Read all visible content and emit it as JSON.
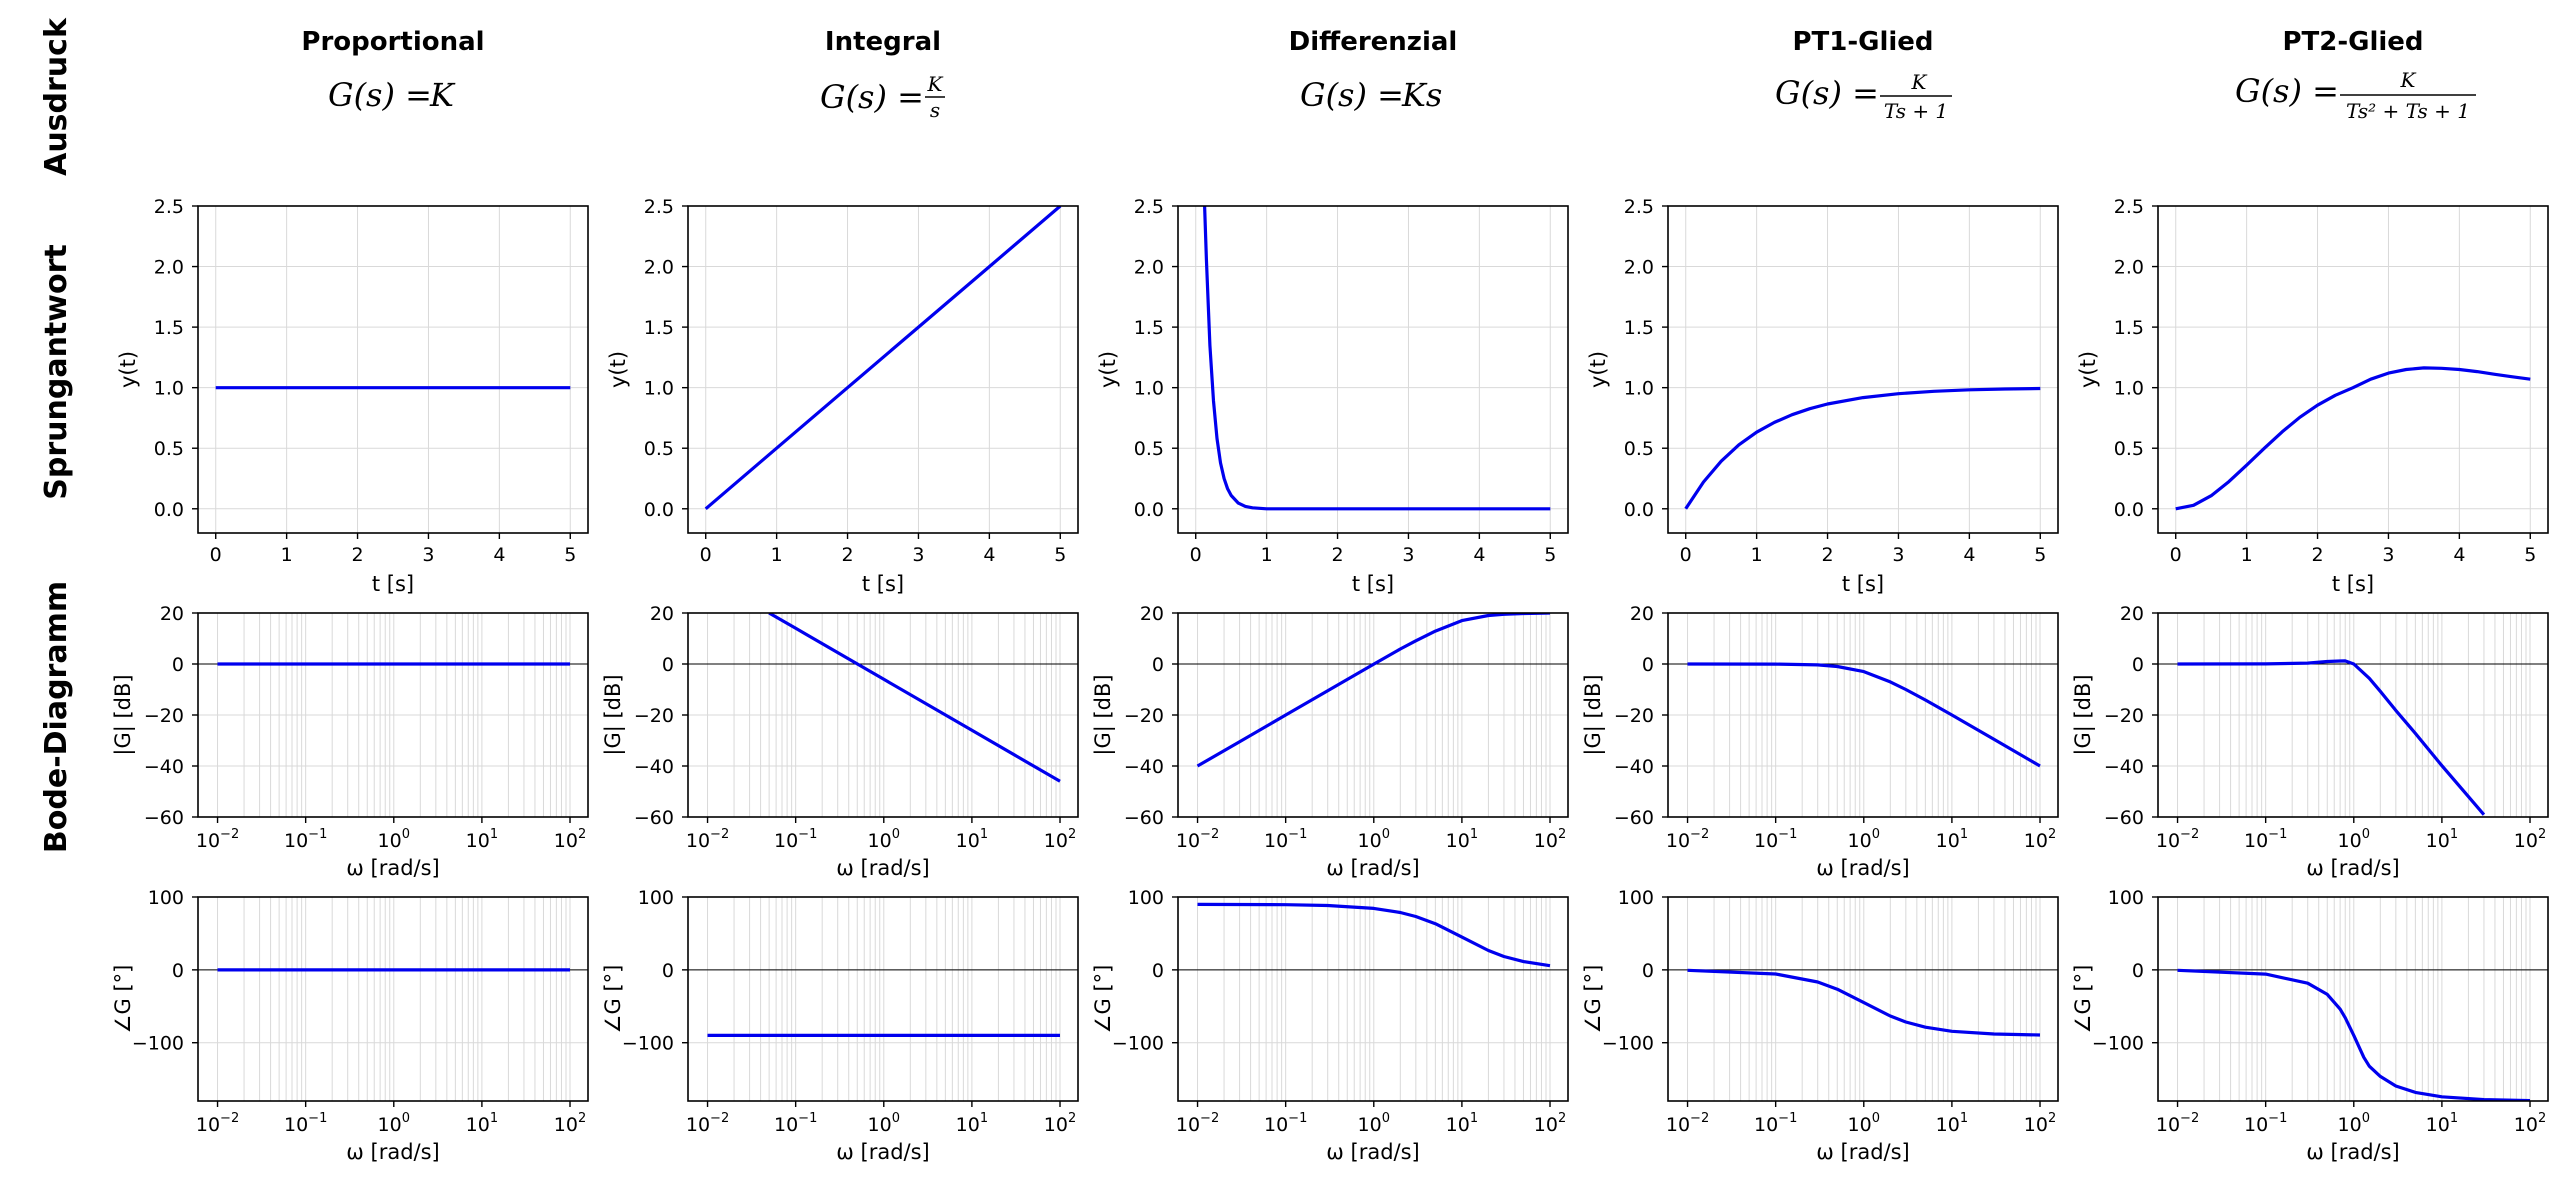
{
  "figure": {
    "row_labels": [
      "Ausdruck",
      "Sprungantwort",
      "Bode-Diagramm"
    ],
    "columns": [
      {
        "title": "Proportional",
        "formula_lhs": "G(s) =",
        "formula": "K",
        "formula_num": "",
        "formula_den": ""
      },
      {
        "title": "Integral",
        "formula_lhs": "G(s) =",
        "formula": "",
        "formula_num": "K",
        "formula_den": "s"
      },
      {
        "title": "Differenzial",
        "formula_lhs": "G(s) =",
        "formula": "Ks",
        "formula_num": "",
        "formula_den": ""
      },
      {
        "title": "PT1-Glied",
        "formula_lhs": "G(s) =",
        "formula": "",
        "formula_num": "K",
        "formula_den": "Ts + 1"
      },
      {
        "title": "PT2-Glied",
        "formula_lhs": "G(s) =",
        "formula": "",
        "formula_num": "K",
        "formula_den": "Ts² + Ts + 1"
      }
    ]
  },
  "chart_data": [
    {
      "type": "line",
      "panel": "step",
      "column": 0,
      "xlabel": "t [s]",
      "ylabel": "y(t)",
      "xlim": [
        -0.25,
        5.25
      ],
      "ylim": [
        -0.2,
        2.5
      ],
      "xticks": [
        0,
        1,
        2,
        3,
        4,
        5
      ],
      "yticks": [
        0.0,
        0.5,
        1.0,
        1.5,
        2.0,
        2.5
      ],
      "grid": true,
      "x": [
        0,
        1,
        2,
        3,
        4,
        5
      ],
      "y": [
        1,
        1,
        1,
        1,
        1,
        1
      ]
    },
    {
      "type": "line",
      "panel": "step",
      "column": 1,
      "xlabel": "t [s]",
      "ylabel": "y(t)",
      "xlim": [
        -0.25,
        5.25
      ],
      "ylim": [
        -0.2,
        2.5
      ],
      "xticks": [
        0,
        1,
        2,
        3,
        4,
        5
      ],
      "yticks": [
        0.0,
        0.5,
        1.0,
        1.5,
        2.0,
        2.5
      ],
      "grid": true,
      "x": [
        0,
        1,
        2,
        3,
        4,
        5
      ],
      "y": [
        0,
        0.5,
        1.0,
        1.5,
        2.0,
        2.5
      ]
    },
    {
      "type": "line",
      "panel": "step",
      "column": 2,
      "xlabel": "t [s]",
      "ylabel": "y(t)",
      "xlim": [
        -0.25,
        5.25
      ],
      "ylim": [
        -0.2,
        2.5
      ],
      "xticks": [
        0,
        1,
        2,
        3,
        4,
        5
      ],
      "yticks": [
        0.0,
        0.5,
        1.0,
        1.5,
        2.0,
        2.5
      ],
      "grid": true,
      "x": [
        0.125,
        0.15,
        0.2,
        0.25,
        0.3,
        0.35,
        0.4,
        0.45,
        0.5,
        0.6,
        0.7,
        0.8,
        1.0,
        2,
        3,
        4,
        5
      ],
      "y": [
        2.5,
        2.06,
        1.35,
        0.89,
        0.58,
        0.38,
        0.25,
        0.165,
        0.11,
        0.047,
        0.02,
        0.008,
        0.0,
        0.0,
        0.0,
        0.0,
        0.0
      ]
    },
    {
      "type": "line",
      "panel": "step",
      "column": 3,
      "xlabel": "t [s]",
      "ylabel": "y(t)",
      "xlim": [
        -0.25,
        5.25
      ],
      "ylim": [
        -0.2,
        2.5
      ],
      "xticks": [
        0,
        1,
        2,
        3,
        4,
        5
      ],
      "yticks": [
        0.0,
        0.5,
        1.0,
        1.5,
        2.0,
        2.5
      ],
      "grid": true,
      "x": [
        0,
        0.25,
        0.5,
        0.75,
        1.0,
        1.25,
        1.5,
        1.75,
        2.0,
        2.5,
        3.0,
        3.5,
        4.0,
        4.5,
        5.0
      ],
      "y": [
        0,
        0.221,
        0.393,
        0.528,
        0.632,
        0.713,
        0.777,
        0.826,
        0.865,
        0.918,
        0.95,
        0.97,
        0.982,
        0.989,
        0.993
      ]
    },
    {
      "type": "line",
      "panel": "step",
      "column": 4,
      "xlabel": "t [s]",
      "ylabel": "y(t)",
      "xlim": [
        -0.25,
        5.25
      ],
      "ylim": [
        -0.2,
        2.5
      ],
      "xticks": [
        0,
        1,
        2,
        3,
        4,
        5
      ],
      "yticks": [
        0.0,
        0.5,
        1.0,
        1.5,
        2.0,
        2.5
      ],
      "grid": true,
      "x": [
        0,
        0.25,
        0.5,
        0.75,
        1.0,
        1.25,
        1.5,
        1.75,
        2.0,
        2.25,
        2.5,
        2.75,
        3.0,
        3.25,
        3.5,
        3.75,
        4.0,
        4.25,
        4.5,
        4.75,
        5.0
      ],
      "y": [
        0,
        0.029,
        0.108,
        0.224,
        0.36,
        0.5,
        0.635,
        0.755,
        0.855,
        0.937,
        1.0,
        1.07,
        1.12,
        1.15,
        1.163,
        1.16,
        1.15,
        1.133,
        1.11,
        1.09,
        1.07
      ]
    },
    {
      "type": "line",
      "panel": "bode-mag",
      "column": 0,
      "xlabel": "ω [rad/s]",
      "ylabel": "|G| [dB]",
      "xscale": "log",
      "xlim": [
        0.006,
        160
      ],
      "ylim": [
        -60,
        20
      ],
      "xticks": [
        0.01,
        0.1,
        1,
        10,
        100
      ],
      "yticks": [
        -60,
        -40,
        -20,
        0,
        20
      ],
      "grid": true,
      "x": [
        0.01,
        100
      ],
      "y": [
        0,
        0
      ]
    },
    {
      "type": "line",
      "panel": "bode-mag",
      "column": 1,
      "xlabel": "ω [rad/s]",
      "ylabel": "|G| [dB]",
      "xscale": "log",
      "xlim": [
        0.006,
        160
      ],
      "ylim": [
        -60,
        20
      ],
      "xticks": [
        0.01,
        0.1,
        1,
        10,
        100
      ],
      "yticks": [
        -60,
        -40,
        -20,
        0,
        20
      ],
      "grid": true,
      "x": [
        0.05,
        0.1,
        1,
        10,
        100
      ],
      "y": [
        20,
        14,
        -6,
        -26,
        -46
      ]
    },
    {
      "type": "line",
      "panel": "bode-mag",
      "column": 2,
      "xlabel": "ω [rad/s]",
      "ylabel": "|G| [dB]",
      "xscale": "log",
      "xlim": [
        0.006,
        160
      ],
      "ylim": [
        -60,
        20
      ],
      "xticks": [
        0.01,
        0.1,
        1,
        10,
        100
      ],
      "yticks": [
        -60,
        -40,
        -20,
        0,
        20
      ],
      "grid": true,
      "x": [
        0.01,
        0.03,
        0.1,
        0.3,
        1,
        2,
        3,
        5,
        10,
        20,
        30,
        50,
        100
      ],
      "y": [
        -40,
        -30.5,
        -20,
        -10.5,
        -0.04,
        5.9,
        9.1,
        12.9,
        17,
        19.0,
        19.5,
        19.8,
        20
      ]
    },
    {
      "type": "line",
      "panel": "bode-mag",
      "column": 3,
      "xlabel": "ω [rad/s]",
      "ylabel": "|G| [dB]",
      "xscale": "log",
      "xlim": [
        0.006,
        160
      ],
      "ylim": [
        -60,
        20
      ],
      "xticks": [
        0.01,
        0.1,
        1,
        10,
        100
      ],
      "yticks": [
        -60,
        -40,
        -20,
        0,
        20
      ],
      "grid": true,
      "x": [
        0.01,
        0.1,
        0.3,
        0.5,
        1,
        2,
        3,
        5,
        10,
        30,
        100
      ],
      "y": [
        0,
        -0.04,
        -0.37,
        -0.97,
        -3.0,
        -7.0,
        -10.0,
        -14.1,
        -20.0,
        -29.5,
        -40.0
      ]
    },
    {
      "type": "line",
      "panel": "bode-mag",
      "column": 4,
      "xlabel": "ω [rad/s]",
      "ylabel": "|G| [dB]",
      "xscale": "log",
      "xlim": [
        0.006,
        160
      ],
      "ylim": [
        -60,
        20
      ],
      "xticks": [
        0.01,
        0.1,
        1,
        10,
        100
      ],
      "yticks": [
        -60,
        -40,
        -20,
        0,
        20
      ],
      "grid": true,
      "x": [
        0.01,
        0.1,
        0.3,
        0.5,
        0.7,
        0.8,
        1,
        1.5,
        2,
        3,
        5,
        10,
        20,
        30
      ],
      "y": [
        0,
        0.04,
        0.37,
        0.97,
        1.19,
        1.2,
        0,
        -5.6,
        -10.7,
        -18.2,
        -27.2,
        -39.9,
        -52.0,
        -59.1
      ]
    },
    {
      "type": "line",
      "panel": "bode-phase",
      "column": 0,
      "xlabel": "ω [rad/s]",
      "ylabel": "∠G [°]",
      "xscale": "log",
      "xlim": [
        0.006,
        160
      ],
      "ylim": [
        -180,
        100
      ],
      "xticks": [
        0.01,
        0.1,
        1,
        10,
        100
      ],
      "yticks": [
        -100,
        0,
        100
      ],
      "grid": true,
      "x": [
        0.01,
        100
      ],
      "y": [
        0,
        0
      ]
    },
    {
      "type": "line",
      "panel": "bode-phase",
      "column": 1,
      "xlabel": "ω [rad/s]",
      "ylabel": "∠G [°]",
      "xscale": "log",
      "xlim": [
        0.006,
        160
      ],
      "ylim": [
        -180,
        100
      ],
      "xticks": [
        0.01,
        0.1,
        1,
        10,
        100
      ],
      "yticks": [
        -100,
        0,
        100
      ],
      "grid": true,
      "x": [
        0.01,
        100
      ],
      "y": [
        -90,
        -90
      ]
    },
    {
      "type": "line",
      "panel": "bode-phase",
      "column": 2,
      "xlabel": "ω [rad/s]",
      "ylabel": "∠G [°]",
      "xscale": "log",
      "xlim": [
        0.006,
        160
      ],
      "ylim": [
        -180,
        100
      ],
      "xticks": [
        0.01,
        0.1,
        1,
        10,
        100
      ],
      "yticks": [
        -100,
        0,
        100
      ],
      "grid": true,
      "x": [
        0.01,
        0.1,
        0.3,
        1,
        2,
        3,
        5,
        10,
        20,
        30,
        50,
        100
      ],
      "y": [
        89.9,
        89.4,
        88.3,
        84.3,
        78.7,
        73.3,
        63.4,
        45,
        26.6,
        18.4,
        11.3,
        5.7
      ]
    },
    {
      "type": "line",
      "panel": "bode-phase",
      "column": 3,
      "xlabel": "ω [rad/s]",
      "ylabel": "∠G [°]",
      "xscale": "log",
      "xlim": [
        0.006,
        160
      ],
      "ylim": [
        -180,
        100
      ],
      "xticks": [
        0.01,
        0.1,
        1,
        10,
        100
      ],
      "yticks": [
        -100,
        0,
        100
      ],
      "grid": true,
      "x": [
        0.01,
        0.1,
        0.3,
        0.5,
        1,
        2,
        3,
        5,
        10,
        30,
        100
      ],
      "y": [
        -0.6,
        -5.7,
        -16.7,
        -26.6,
        -45,
        -63.4,
        -71.6,
        -78.7,
        -84.3,
        -88.1,
        -89.4
      ]
    },
    {
      "type": "line",
      "panel": "bode-phase",
      "column": 4,
      "xlabel": "ω [rad/s]",
      "ylabel": "∠G [°]",
      "xscale": "log",
      "xlim": [
        0.006,
        160
      ],
      "ylim": [
        -180,
        100
      ],
      "xticks": [
        0.01,
        0.1,
        1,
        10,
        100
      ],
      "yticks": [
        -100,
        0,
        100
      ],
      "grid": true,
      "x": [
        0.01,
        0.1,
        0.3,
        0.5,
        0.7,
        0.8,
        1,
        1.3,
        1.5,
        2,
        3,
        5,
        10,
        30,
        100
      ],
      "y": [
        -0.6,
        -5.8,
        -18.3,
        -33.7,
        -53.9,
        -65.6,
        -90,
        -120,
        -132.3,
        -146.3,
        -159.4,
        -168.2,
        -174.2,
        -178.1,
        -179.4
      ]
    }
  ]
}
